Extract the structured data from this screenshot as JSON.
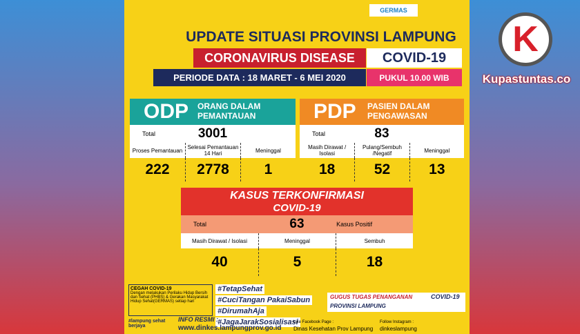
{
  "header": {
    "logo": "GERMAS",
    "title": "UPDATE SITUASI PROVINSI LAMPUNG",
    "subtitle": "CORONAVIRUS DISEASE",
    "badge": "COVID-19",
    "period": "PERIODE DATA : 18 MARET - 6 MEI 2020",
    "time": "PUKUL 10.00 WIB"
  },
  "odp": {
    "abbr": "ODP",
    "full": "ORANG DALAM PEMANTAUAN",
    "total_label": "Total",
    "total": 3001,
    "cells": [
      {
        "label": "Proses Pemantauan",
        "value": 222
      },
      {
        "label": "Selesai Pemantauan 14 Hari",
        "value": 2778
      },
      {
        "label": "Meninggal",
        "value": 1
      }
    ]
  },
  "pdp": {
    "abbr": "PDP",
    "full": "PASIEN DALAM PENGAWASAN",
    "total_label": "Total",
    "total": 83,
    "cells": [
      {
        "label": "Masih Dirawat / Isolasi",
        "value": 18
      },
      {
        "label": "Pulang/Sembuh /Negatif",
        "value": 52
      },
      {
        "label": "Meninggal",
        "value": 13
      }
    ]
  },
  "confirmed": {
    "title": "KASUS TERKONFIRMASI",
    "subtitle": "COVID-19",
    "total_label": "Total",
    "total": 63,
    "note": "Kasus Positif",
    "cells": [
      {
        "label": "Masih Dirawat / Isolasi",
        "value": 40
      },
      {
        "label": "Meninggal",
        "value": 5
      },
      {
        "label": "Sembuh",
        "value": 18
      }
    ]
  },
  "footer": {
    "prevent_title": "CEGAH COVID-19",
    "prevent_text": "Dengan melakukan Perilaku Hidup Bersih dan Sehat (PHBS) & Gerakan Masyarakat Hidup Sehat(GERMAS) setiap hari",
    "hashtags": [
      "#TetapSehat",
      "#CuciTangan PakaiSabun",
      "#DirumahAja",
      "#JagaJarakSosialisasi"
    ],
    "task_force": "GUGUS TUGAS PENANGANAN",
    "task_badge": "COVID-19",
    "task_region": "PROVINSI LAMPUNG",
    "brand": "#lampung sehat berjaya",
    "info_label": "INFO RESMI :",
    "website": "www.dinkes.lampungprov.go.id",
    "fb_label": "Like Facebook Page :",
    "fb": "Dinas Kesehatan Prov Lampung",
    "ig_label": "Follow Instagram :",
    "ig": "dinkeslampung"
  },
  "watermark": {
    "logo": "K",
    "site": "Kupastuntas.co"
  }
}
